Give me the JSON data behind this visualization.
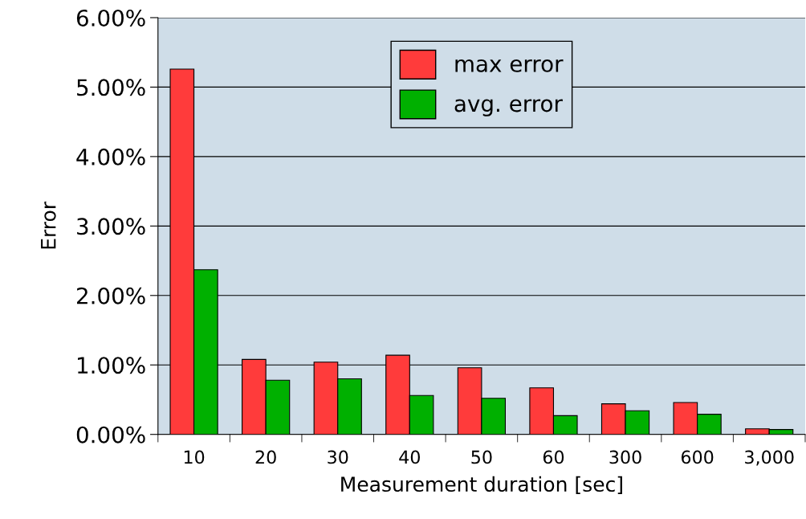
{
  "chart_data": {
    "type": "bar",
    "xlabel": "Measurement duration [sec]",
    "ylabel": "Error",
    "categories": [
      "10",
      "20",
      "30",
      "40",
      "50",
      "60",
      "300",
      "600",
      "3,000"
    ],
    "series": [
      {
        "name": "max error",
        "color": "#ff3b3b",
        "values": [
          5.26,
          1.08,
          1.04,
          1.14,
          0.96,
          0.67,
          0.44,
          0.46,
          0.08
        ]
      },
      {
        "name": "avg. error",
        "color": "#00b000",
        "values": [
          2.37,
          0.78,
          0.8,
          0.56,
          0.52,
          0.27,
          0.34,
          0.29,
          0.07
        ]
      }
    ],
    "ylim": [
      0,
      6
    ],
    "yticks": [
      {
        "value": 0,
        "label": "0.00%"
      },
      {
        "value": 1,
        "label": "1.00%"
      },
      {
        "value": 2,
        "label": "2.00%"
      },
      {
        "value": 3,
        "label": "3.00%"
      },
      {
        "value": 4,
        "label": "4.00%"
      },
      {
        "value": 5,
        "label": "5.00%"
      },
      {
        "value": 6,
        "label": "6.00%"
      }
    ],
    "grid": "y",
    "legend": "top"
  }
}
